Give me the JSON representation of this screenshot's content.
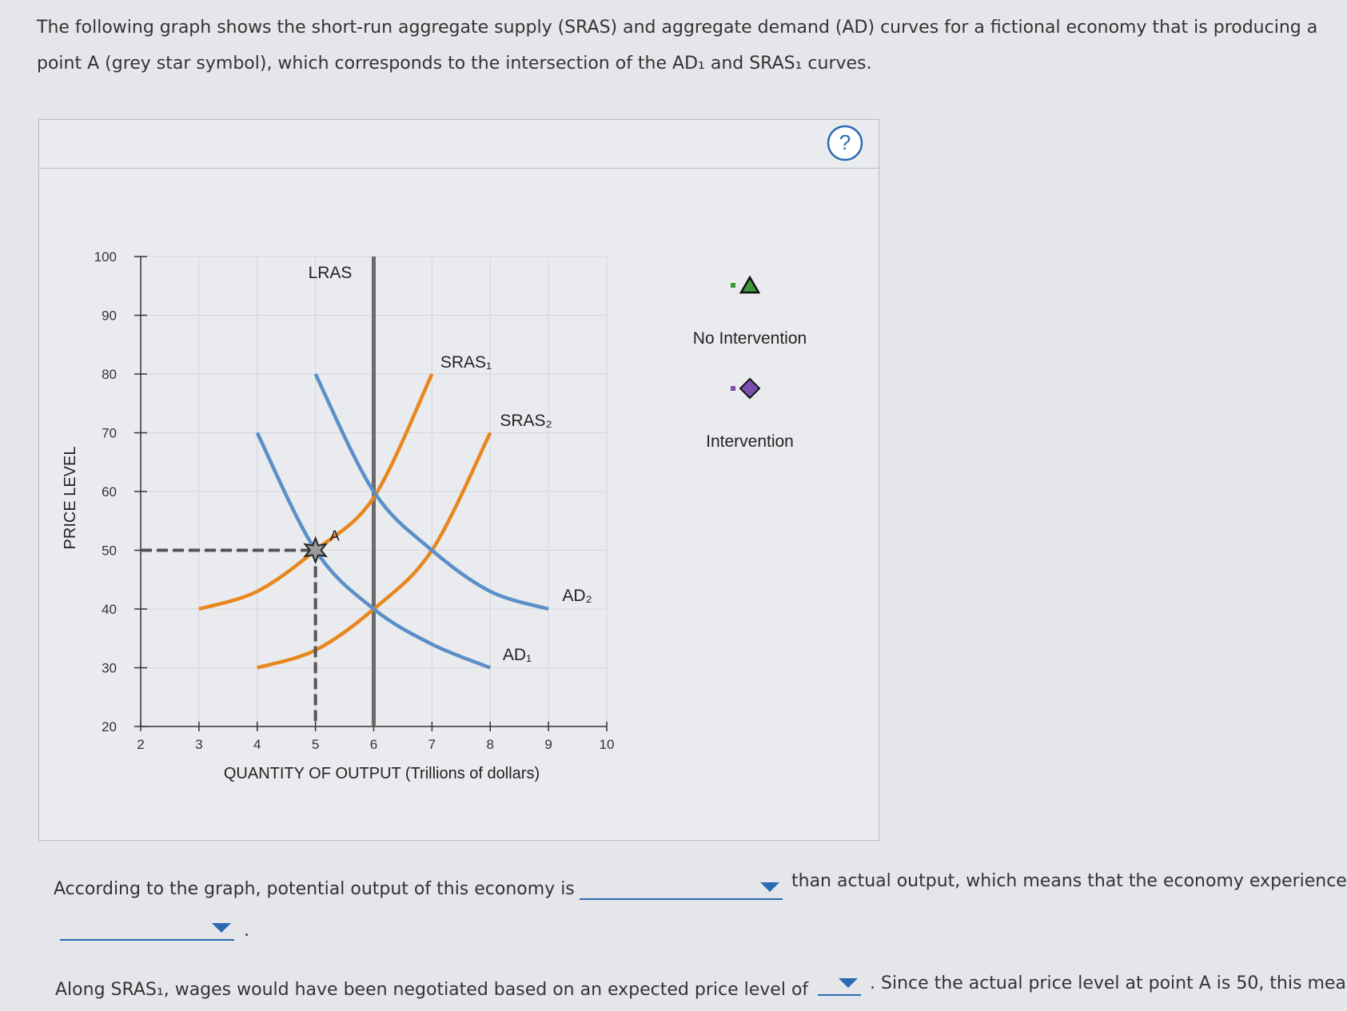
{
  "intro": [
    "The following graph shows the short-run aggregate supply (SRAS) and aggregate demand (AD) curves for a fictional economy that is producing a",
    "point A (grey star symbol), which corresponds to the intersection of the AD₁ and SRAS₁ curves."
  ],
  "panel": {
    "help": "?",
    "graph": {
      "type": "line",
      "xlabel": "QUANTITY OF OUTPUT (Trillions of dollars)",
      "ylabel": "PRICE LEVEL",
      "xlim": [
        2,
        10
      ],
      "ylim": [
        20,
        100
      ],
      "xticks": [
        2,
        3,
        4,
        5,
        6,
        7,
        8,
        9,
        10
      ],
      "yticks": [
        20,
        30,
        40,
        50,
        60,
        70,
        80,
        90,
        100
      ],
      "grid": true,
      "series": [
        {
          "name": "LRAS",
          "color": "#6b6b6b",
          "x": [
            6,
            6
          ],
          "values": [
            20,
            100
          ]
        },
        {
          "name": "SRAS₁",
          "color": "#e8871e",
          "x": [
            3,
            4,
            5,
            6,
            7
          ],
          "values": [
            40,
            43,
            50,
            59,
            80
          ]
        },
        {
          "name": "SRAS₂",
          "color": "#e8871e",
          "x": [
            4,
            5,
            6,
            7,
            8
          ],
          "values": [
            30,
            33,
            40,
            50,
            70
          ]
        },
        {
          "name": "AD₁",
          "color": "#5b8fc7",
          "x": [
            4,
            5,
            6,
            7,
            8
          ],
          "values": [
            70,
            50,
            40,
            34,
            30
          ]
        },
        {
          "name": "AD₂",
          "color": "#5b8fc7",
          "x": [
            5,
            6,
            7,
            8,
            9
          ],
          "values": [
            80,
            60,
            50,
            43,
            40
          ]
        }
      ],
      "point": {
        "label": "A",
        "x": 5,
        "y": 50,
        "color": "#9a9a9a"
      }
    },
    "tools": [
      {
        "label": "No Intervention",
        "shape": "triangle",
        "color": "#3a9a3a"
      },
      {
        "label": "Intervention",
        "shape": "diamond",
        "color": "#7b4fb0"
      }
    ]
  },
  "questions": {
    "q1_before": "According to the graph, potential output of this economy is",
    "q1_after": "than actual output, which means that the economy experience",
    "q1_end": ".",
    "q2_before": "Along SRAS₁, wages would have been negotiated based on an expected price level of",
    "q2_after": ". Since the actual price level at point A is 50, this mea"
  }
}
